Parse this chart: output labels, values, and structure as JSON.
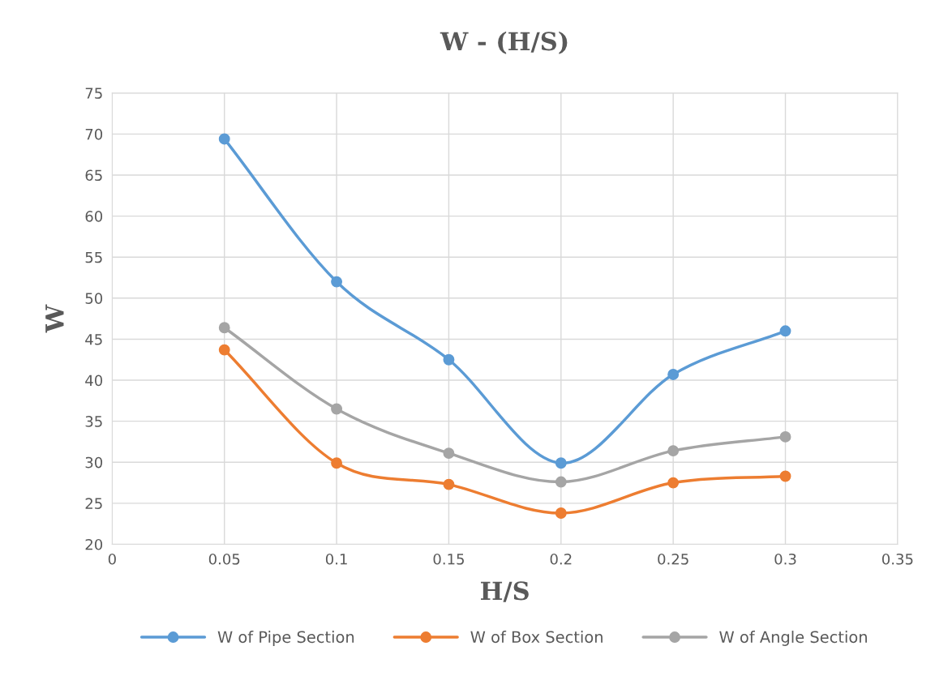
{
  "chart_data": {
    "type": "line",
    "title": "W - (H/S)",
    "xlabel": "H/S",
    "ylabel": "W",
    "x": [
      0.05,
      0.1,
      0.15,
      0.2,
      0.25,
      0.3
    ],
    "series": [
      {
        "name": "W of Pipe Section",
        "color": "#5b9bd5",
        "values": [
          69.4,
          52.0,
          42.5,
          29.9,
          40.7,
          46.0
        ]
      },
      {
        "name": "W of Box Section",
        "color": "#ed7d31",
        "values": [
          43.7,
          29.9,
          27.3,
          23.8,
          27.5,
          28.3
        ]
      },
      {
        "name": "W of Angle Section",
        "color": "#a5a5a5",
        "values": [
          46.4,
          36.5,
          31.1,
          27.6,
          31.4,
          33.1
        ]
      }
    ],
    "xlim": [
      0,
      0.35
    ],
    "xticks": [
      0,
      0.05,
      0.1,
      0.15,
      0.2,
      0.25,
      0.3,
      0.35
    ],
    "ylim": [
      20,
      75
    ],
    "yticks": [
      20,
      25,
      30,
      35,
      40,
      45,
      50,
      55,
      60,
      65,
      70,
      75
    ],
    "grid": true,
    "legend": "bottom",
    "marker": "circle",
    "line_style": "solid"
  }
}
